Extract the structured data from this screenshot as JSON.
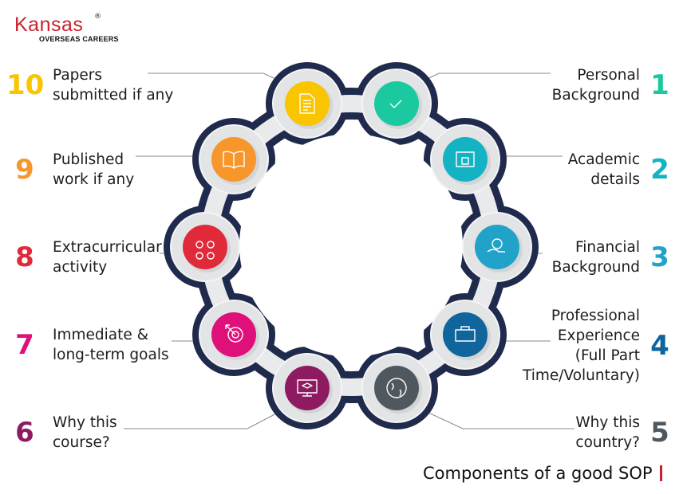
{
  "logo": {
    "brand": "Kansas",
    "registered": "®",
    "tagline": "OVERSEAS CAREERS"
  },
  "caption": "Components of a good SOP",
  "items": [
    {
      "number": "1",
      "lines": [
        "Personal",
        "Background"
      ],
      "color": "#1bc9a0",
      "icon": "checkmark-click-icon"
    },
    {
      "number": "2",
      "lines": [
        "Academic",
        "details"
      ],
      "color": "#13b3c3",
      "icon": "graduate-certificate-icon"
    },
    {
      "number": "3",
      "lines": [
        "Financial",
        "Background"
      ],
      "color": "#21a3c9",
      "icon": "hand-money-icon"
    },
    {
      "number": "4",
      "lines": [
        "Professional",
        "Experience",
        "(Full Part",
        "Time/Voluntary)"
      ],
      "color": "#0f659c",
      "icon": "briefcase-clock-icon"
    },
    {
      "number": "5",
      "lines": [
        "Why this",
        "country?"
      ],
      "color": "#4f585e",
      "icon": "globe-icon"
    },
    {
      "number": "6",
      "lines": [
        "Why this",
        "course?"
      ],
      "color": "#8e1a62",
      "icon": "monitor-graduation-icon"
    },
    {
      "number": "7",
      "lines": [
        "Immediate &",
        "long-term goals"
      ],
      "color": "#e0107a",
      "icon": "target-icon"
    },
    {
      "number": "8",
      "lines": [
        "Extracurricular",
        "activity"
      ],
      "color": "#e02a3a",
      "icon": "activities-icon"
    },
    {
      "number": "9",
      "lines": [
        "Published",
        "work if any"
      ],
      "color": "#f7962b",
      "icon": "open-book-icon"
    },
    {
      "number": "10",
      "lines": [
        "Papers",
        "submitted if any"
      ],
      "color": "#f9c400",
      "icon": "document-icon"
    }
  ]
}
